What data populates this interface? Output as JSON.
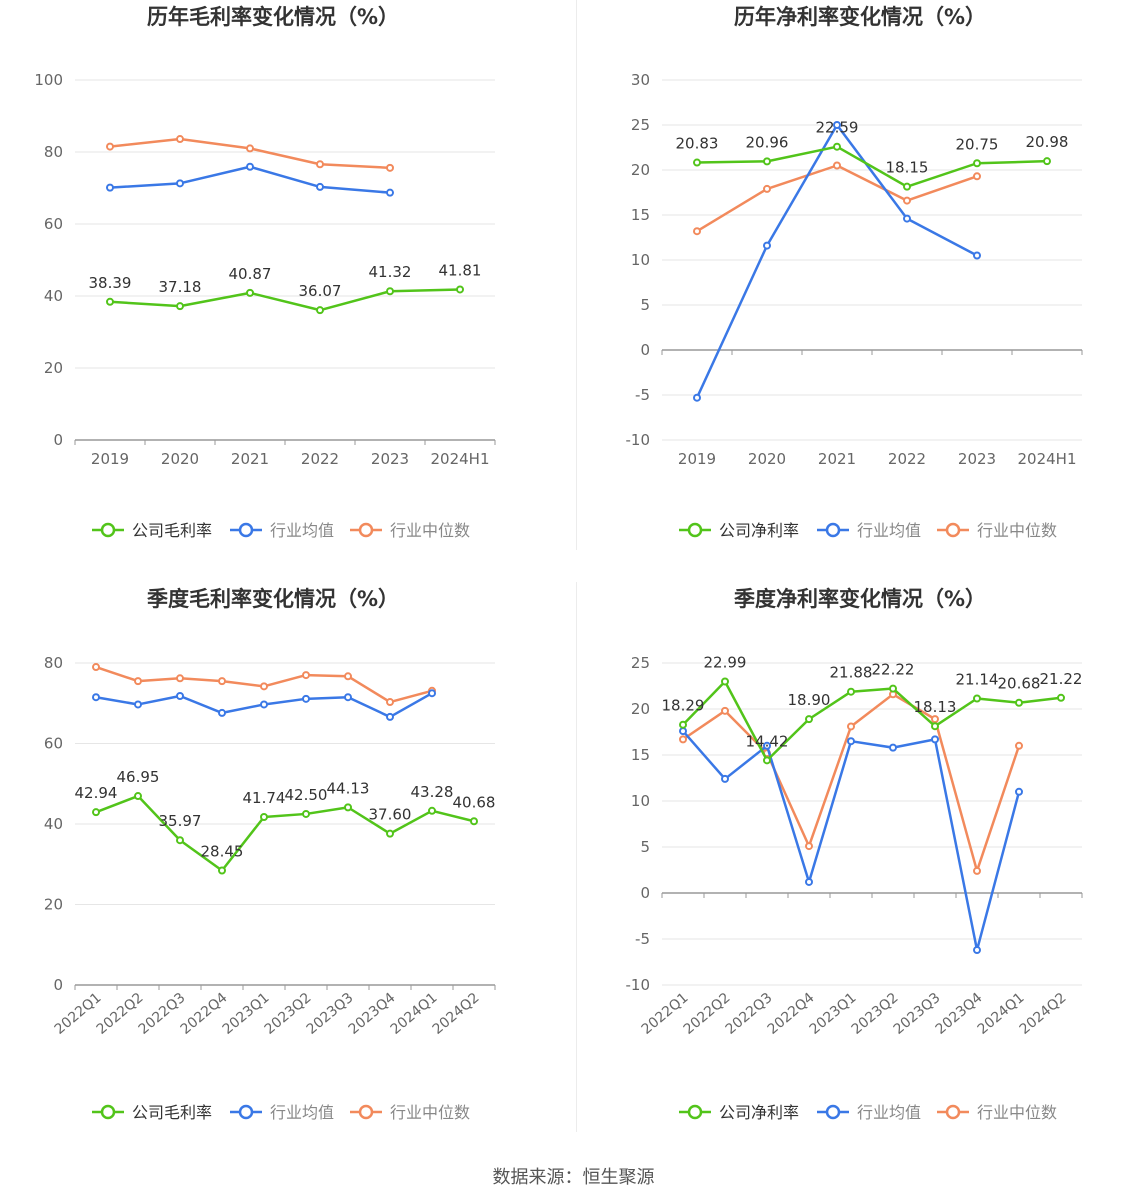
{
  "source": "数据来源：恒生聚源",
  "legend_labels": {
    "company_gross": "公司毛利率",
    "company_net": "公司净利率",
    "avg": "行业均值",
    "median": "行业中位数"
  },
  "colors": {
    "company": "#52c41a",
    "avg": "#3a78e6",
    "median": "#f28a5c",
    "grid": "#e6e6e6",
    "axis": "#999999",
    "text": "#333333"
  },
  "chart_data": [
    {
      "id": "annual-gross",
      "type": "line",
      "title": "历年毛利率变化情况（%）",
      "categories": [
        "2019",
        "2020",
        "2021",
        "2022",
        "2023",
        "2024H1"
      ],
      "ylim": [
        0,
        100
      ],
      "yticks": [
        0,
        20,
        40,
        60,
        80,
        100
      ],
      "rotate_x": false,
      "series": [
        {
          "key": "company",
          "name": "公司毛利率",
          "values": [
            38.39,
            37.18,
            40.87,
            36.07,
            41.32,
            41.81
          ],
          "labels": [
            "38.39",
            "37.18",
            "40.87",
            "36.07",
            "41.32",
            "41.81"
          ]
        },
        {
          "key": "avg",
          "name": "行业均值",
          "values": [
            70.1,
            71.3,
            75.9,
            70.3,
            68.7,
            null
          ]
        },
        {
          "key": "median",
          "name": "行业中位数",
          "values": [
            81.5,
            83.6,
            81.0,
            76.6,
            75.6,
            null
          ]
        }
      ]
    },
    {
      "id": "annual-net",
      "type": "line",
      "title": "历年净利率变化情况（%）",
      "categories": [
        "2019",
        "2020",
        "2021",
        "2022",
        "2023",
        "2024H1"
      ],
      "ylim": [
        -10,
        30
      ],
      "yticks": [
        -10,
        -5,
        0,
        5,
        10,
        15,
        20,
        25,
        30
      ],
      "rotate_x": false,
      "series": [
        {
          "key": "company",
          "name": "公司净利率",
          "values": [
            20.83,
            20.96,
            22.59,
            18.15,
            20.75,
            20.98
          ],
          "labels": [
            "20.83",
            "20.96",
            "22.59",
            "18.15",
            "20.75",
            "20.98"
          ]
        },
        {
          "key": "avg",
          "name": "行业均值",
          "values": [
            -5.3,
            11.6,
            25.0,
            14.6,
            10.5,
            null
          ]
        },
        {
          "key": "median",
          "name": "行业中位数",
          "values": [
            13.2,
            17.9,
            20.5,
            16.6,
            19.3,
            null
          ]
        }
      ]
    },
    {
      "id": "quarterly-gross",
      "type": "line",
      "title": "季度毛利率变化情况（%）",
      "categories": [
        "2022Q1",
        "2022Q2",
        "2022Q3",
        "2022Q4",
        "2023Q1",
        "2023Q2",
        "2023Q3",
        "2023Q4",
        "2024Q1",
        "2024Q2"
      ],
      "ylim": [
        0,
        80
      ],
      "yticks": [
        0,
        20,
        40,
        60,
        80
      ],
      "rotate_x": true,
      "series": [
        {
          "key": "company",
          "name": "公司毛利率",
          "values": [
            42.94,
            46.95,
            35.97,
            28.45,
            41.74,
            42.5,
            44.13,
            37.6,
            43.28,
            40.68
          ],
          "labels": [
            "42.94",
            "46.95",
            "35.97",
            "28.45",
            "41.74",
            "42.50",
            "44.13",
            "37.60",
            "43.28",
            "40.68"
          ]
        },
        {
          "key": "avg",
          "name": "行业均值",
          "values": [
            71.5,
            69.7,
            71.8,
            67.6,
            69.7,
            71.1,
            71.5,
            66.6,
            72.5,
            null
          ]
        },
        {
          "key": "median",
          "name": "行业中位数",
          "values": [
            79.0,
            75.5,
            76.2,
            75.5,
            74.2,
            77.0,
            76.7,
            70.3,
            73.1,
            null
          ]
        }
      ]
    },
    {
      "id": "quarterly-net",
      "type": "line",
      "title": "季度净利率变化情况（%）",
      "categories": [
        "2022Q1",
        "2022Q2",
        "2022Q3",
        "2022Q4",
        "2023Q1",
        "2023Q2",
        "2023Q3",
        "2023Q4",
        "2024Q1",
        "2024Q2"
      ],
      "ylim": [
        -10,
        25
      ],
      "yticks": [
        -10,
        -5,
        0,
        5,
        10,
        15,
        20,
        25
      ],
      "rotate_x": true,
      "series": [
        {
          "key": "company",
          "name": "公司净利率",
          "values": [
            18.29,
            22.99,
            14.42,
            18.9,
            21.88,
            22.22,
            18.13,
            21.14,
            20.68,
            21.22
          ],
          "labels": [
            "18.29",
            "22.99",
            "14.42",
            "18.90",
            "21.88",
            "22.22",
            "18.13",
            "21.14",
            "20.68",
            "21.22"
          ]
        },
        {
          "key": "avg",
          "name": "行业均值",
          "values": [
            17.6,
            12.4,
            16.0,
            1.2,
            16.5,
            15.8,
            16.7,
            -6.2,
            11.0,
            null
          ]
        },
        {
          "key": "median",
          "name": "行业中位数",
          "values": [
            16.7,
            19.8,
            15.2,
            5.1,
            18.1,
            21.6,
            18.9,
            2.4,
            16.0,
            null
          ]
        }
      ]
    }
  ]
}
